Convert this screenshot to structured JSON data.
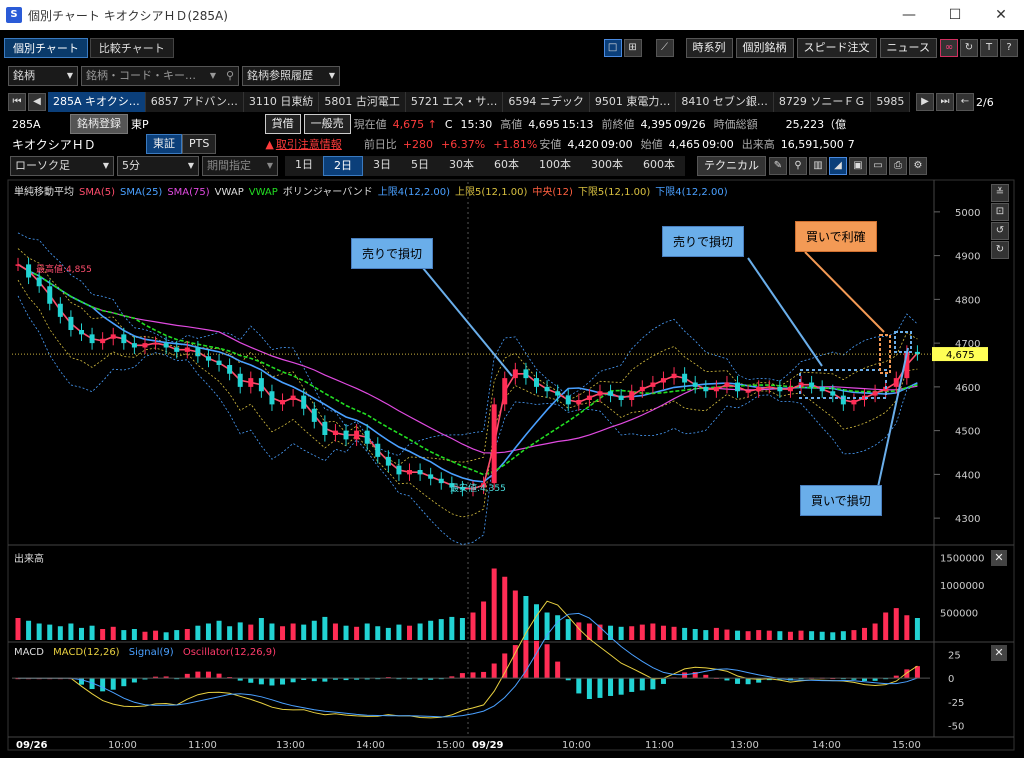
{
  "window": {
    "title": "個別チャート キオクシアＨＤ(285A)",
    "logo": "S",
    "minimize": "—",
    "maximize": "☐",
    "close": "✕"
  },
  "tabs": [
    {
      "label": "個別チャート",
      "active": true
    },
    {
      "label": "比較チャート",
      "active": false
    }
  ],
  "toolbar_right": {
    "timeseries": "時系列",
    "individual": "個別銘柄",
    "speed_order": "スピード注文",
    "news": "ニュース"
  },
  "search": {
    "type_label": "銘柄",
    "placeholder": "銘柄・コード・キー…",
    "history_label": "銘柄参照履歴"
  },
  "stock_tabs": [
    "285A キオクシ…",
    "6857 アドバン…",
    "3110 日東紡",
    "5801 古河電工",
    "5721 エス・サ…",
    "6594 ニデック",
    "9501 東電力…",
    "8410 セブン銀…",
    "8729 ソニーＦＧ",
    "5985"
  ],
  "page_indicator": "2/6",
  "stock": {
    "code": "285A",
    "name": "キオクシアＨＤ",
    "register_label": "銘柄登録",
    "market_prefix": "東P",
    "market_tse": "東証",
    "market_pts": "PTS",
    "loan_label": "貸借",
    "general_sell_label": "一般売",
    "warning": "取引注意情報",
    "current_label": "現在値",
    "current_value": "4,675 ↑",
    "current_flag": "C",
    "current_time": "15:30",
    "high_label": "高値",
    "high_value": "4,695",
    "high_time": "15:13",
    "prev_close_label": "前終値",
    "prev_close_value": "4,395",
    "prev_close_date": "09/26",
    "market_cap_label": "時価総額",
    "market_cap_value": "25,223（億",
    "change_label": "前日比",
    "change_value": "+280",
    "change_pct": "+6.37%",
    "change_pct2": "+1.81%",
    "low_label": "安値",
    "low_value": "4,420",
    "low_time": "09:00",
    "open_label": "始値",
    "open_value": "4,465",
    "open_time": "09:00",
    "volume_label": "出来高",
    "volume_value": "16,591,500",
    "volume_suffix": "7"
  },
  "controls": {
    "chart_type": "ローソク足",
    "interval": "5分",
    "period": "期間指定",
    "periods": [
      "1日",
      "2日",
      "3日",
      "5日",
      "30本",
      "60本",
      "100本",
      "300本",
      "600本"
    ],
    "active_period": "2日",
    "technical": "テクニカル"
  },
  "legend": [
    {
      "text": "単純移動平均",
      "color": "#dddddd"
    },
    {
      "text": "SMA(5)",
      "color": "#ff4d6d"
    },
    {
      "text": "SMA(25)",
      "color": "#4aa0ff"
    },
    {
      "text": "SMA(75)",
      "color": "#e04ae0"
    },
    {
      "text": "VWAP",
      "color": "#dddddd"
    },
    {
      "text": "VWAP",
      "color": "#22dd22"
    },
    {
      "text": "ボリンジャーバンド",
      "color": "#dddddd"
    },
    {
      "text": "上限4(12,2.00)",
      "color": "#4aa0ff"
    },
    {
      "text": "上限5(12,1.00)",
      "color": "#d8c040"
    },
    {
      "text": "中央(12)",
      "color": "#ff6040"
    },
    {
      "text": "下限5(12,1.00)",
      "color": "#d8c040"
    },
    {
      "text": "下限4(12,2.00)",
      "color": "#4aa0ff"
    }
  ],
  "annotations": [
    {
      "id": "sell-stop-1",
      "text": "売りで損切",
      "style": "blue"
    },
    {
      "id": "sell-stop-2",
      "text": "売りで損切",
      "style": "blue"
    },
    {
      "id": "buy-profit",
      "text": "買いで利確",
      "style": "orange"
    },
    {
      "id": "buy-stop",
      "text": "買いで損切",
      "style": "blue"
    }
  ],
  "price_axis": {
    "ticks": [
      5000,
      4900,
      4800,
      4700,
      4600,
      4500,
      4400,
      4300
    ],
    "current_price_label": "4,675"
  },
  "highest_label": "最高値:4,855",
  "lowest_label": "最安値:4,355",
  "volume_panel": {
    "title": "出来高",
    "ticks": [
      "1500000",
      "1000000",
      "500000"
    ]
  },
  "macd_panel": {
    "title": "MACD",
    "macd": "MACD(12,26)",
    "signal": "Signal(9)",
    "osc": "Oscillator(12,26,9)",
    "ticks": [
      "25",
      "0",
      "-25",
      "-50"
    ],
    "colors": {
      "macd": "#e8d040",
      "signal": "#4aa0ff",
      "osc": "#ff3b6b"
    }
  },
  "time_axis": [
    "09/26",
    "10:00",
    "11:00",
    "13:00",
    "14:00",
    "15:00",
    "09/29",
    "10:00",
    "11:00",
    "13:00",
    "14:00",
    "15:00"
  ],
  "colors": {
    "up": "#ff2d55",
    "down": "#22d3d3",
    "accent": "#0b3f7a",
    "price_tag": "#ffff55"
  },
  "chart_data": {
    "type": "candlestick",
    "x_range_dates": [
      "09/26",
      "09/29"
    ],
    "price_ylim": [
      4250,
      5050
    ],
    "price_path": [
      4880,
      4850,
      4830,
      4790,
      4760,
      4730,
      4720,
      4700,
      4710,
      4720,
      4700,
      4690,
      4700,
      4700,
      4690,
      4680,
      4690,
      4670,
      4660,
      4650,
      4630,
      4600,
      4620,
      4590,
      4560,
      4570,
      4580,
      4550,
      4520,
      4490,
      4500,
      4480,
      4500,
      4470,
      4440,
      4420,
      4400,
      4410,
      4400,
      4390,
      4380,
      4370,
      4365,
      4370,
      4380,
      4560,
      4620,
      4640,
      4620,
      4600,
      4590,
      4580,
      4560,
      4570,
      4580,
      4590,
      4580,
      4570,
      4590,
      4600,
      4610,
      4620,
      4630,
      4610,
      4600,
      4590,
      4600,
      4610,
      4590,
      4590,
      4600,
      4600,
      4590,
      4600,
      4610,
      4600,
      4590,
      4580,
      4560,
      4570,
      4580,
      4590,
      4600,
      4620,
      4680,
      4675
    ],
    "volume_ylim": [
      0,
      1600000
    ],
    "volume_path": [
      400000,
      350000,
      300000,
      280000,
      250000,
      300000,
      220000,
      260000,
      200000,
      240000,
      180000,
      200000,
      150000,
      170000,
      140000,
      180000,
      200000,
      260000,
      300000,
      350000,
      250000,
      320000,
      280000,
      400000,
      300000,
      250000,
      300000,
      280000,
      350000,
      420000,
      300000,
      260000,
      240000,
      300000,
      250000,
      220000,
      280000,
      260000,
      300000,
      350000,
      380000,
      420000,
      400000,
      500000,
      700000,
      1300000,
      1150000,
      900000,
      800000,
      650000,
      500000,
      450000,
      380000,
      320000,
      300000,
      280000,
      260000,
      240000,
      250000,
      280000,
      300000,
      260000,
      240000,
      220000,
      200000,
      180000,
      220000,
      190000,
      170000,
      160000,
      180000,
      170000,
      160000,
      150000,
      170000,
      160000,
      150000,
      140000,
      160000,
      180000,
      220000,
      300000,
      500000,
      580000,
      450000,
      400000
    ],
    "macd_ylim": [
      -60,
      35
    ]
  }
}
